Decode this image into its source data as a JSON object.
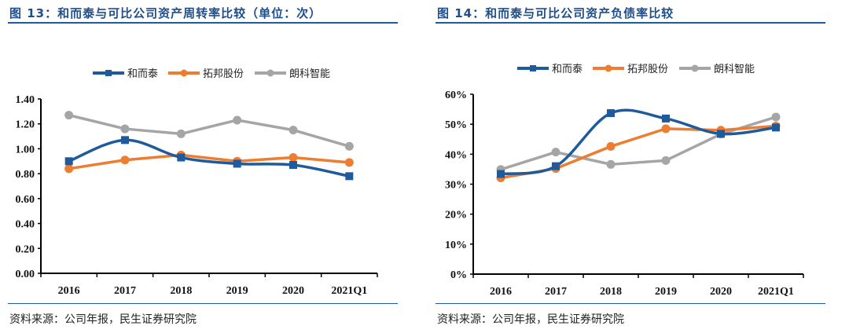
{
  "colors": {
    "blue": "#1f5a9c",
    "orange": "#ed7d31",
    "gray": "#a5a5a5",
    "title": "#1f4e8c"
  },
  "left": {
    "title": "图 13：和而泰与可比公司资产周转率比较（单位：次）",
    "source": "资料来源：公司年报，民生证券研究院"
  },
  "right": {
    "title": "图 14：和而泰与可比公司资产负债率比较",
    "source": "资料来源：公司年报，民生证券研究院"
  },
  "chart_data": [
    {
      "type": "line",
      "categories": [
        "2016",
        "2017",
        "2018",
        "2019",
        "2020",
        "2021Q1"
      ],
      "ylim": [
        0,
        1.4
      ],
      "yticks": [
        "0.00",
        "0.20",
        "0.40",
        "0.60",
        "0.80",
        "1.00",
        "1.20",
        "1.40"
      ],
      "legend": "top",
      "grid": false,
      "series": [
        {
          "name": "和而泰",
          "color": "#1f5a9c",
          "marker": "square",
          "values": [
            0.9,
            1.07,
            0.93,
            0.88,
            0.87,
            0.78
          ]
        },
        {
          "name": "拓邦股份",
          "color": "#ed7d31",
          "marker": "circle",
          "values": [
            0.84,
            0.91,
            0.95,
            0.9,
            0.93,
            0.89
          ]
        },
        {
          "name": "朗科智能",
          "color": "#a5a5a5",
          "marker": "circle",
          "values": [
            1.27,
            1.16,
            1.12,
            1.23,
            1.15,
            1.02
          ]
        }
      ]
    },
    {
      "type": "line",
      "categories": [
        "2016",
        "2017",
        "2018",
        "2019",
        "2020",
        "2021Q1"
      ],
      "ylim": [
        0,
        60
      ],
      "yticks": [
        "0%",
        "10%",
        "20%",
        "30%",
        "40%",
        "50%",
        "60%"
      ],
      "legend": "top",
      "grid": false,
      "series": [
        {
          "name": "和而泰",
          "color": "#1f5a9c",
          "marker": "square",
          "values": [
            33.4,
            36.0,
            53.7,
            51.9,
            46.8,
            48.9
          ]
        },
        {
          "name": "拓邦股份",
          "color": "#ed7d31",
          "marker": "circle",
          "values": [
            32.1,
            35.2,
            42.6,
            48.5,
            48.0,
            49.4
          ]
        },
        {
          "name": "朗科智能",
          "color": "#a5a5a5",
          "marker": "circle",
          "values": [
            34.9,
            40.7,
            36.6,
            37.9,
            46.7,
            52.4
          ]
        }
      ]
    }
  ]
}
